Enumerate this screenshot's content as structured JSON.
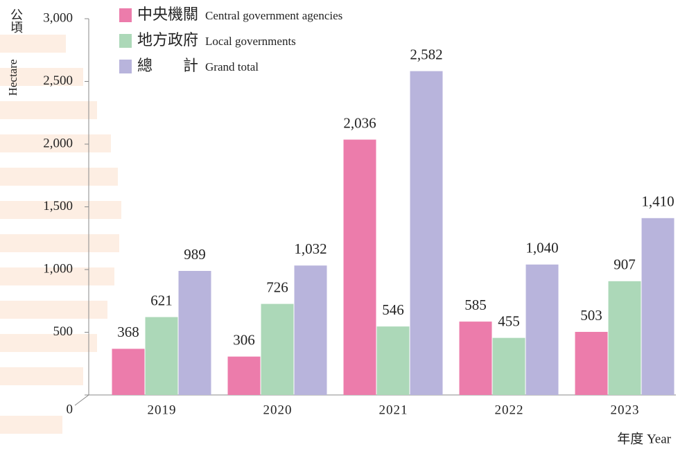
{
  "chart_data": {
    "type": "bar",
    "y_axis_label_zh": "公頃",
    "y_axis_label": "Hectare",
    "x_axis_label": "年度 Year",
    "categories": [
      "2019",
      "2020",
      "2021",
      "2022",
      "2023"
    ],
    "series": [
      {
        "name": "中央機關",
        "name_en": "Central government agencies",
        "color": "#ec7cab",
        "values": [
          368,
          306,
          2036,
          585,
          503
        ],
        "value_labels": [
          "368",
          "306",
          "2,036",
          "585",
          "503"
        ]
      },
      {
        "name": "地方政府",
        "name_en": "Local governments",
        "color": "#acd8b8",
        "values": [
          621,
          726,
          546,
          455,
          907
        ],
        "value_labels": [
          "621",
          "726",
          "546",
          "455",
          "907"
        ]
      },
      {
        "name": "總　　計",
        "name_en": "Grand total",
        "color": "#b8b4dc",
        "values": [
          989,
          1032,
          2582,
          1040,
          1410
        ],
        "value_labels": [
          "989",
          "1,032",
          "2,582",
          "1,040",
          "1,410"
        ]
      }
    ],
    "ylim": [
      0,
      3000
    ],
    "yticks": [
      0,
      500,
      {
        "value": 1000,
        "label": "1,000"
      },
      {
        "value": 1500,
        "label": "1,500"
      },
      {
        "value": 2000,
        "label": "2,000"
      },
      {
        "value": 2500,
        "label": "2,500"
      },
      {
        "value": 3000,
        "label": "3,000"
      }
    ],
    "grid": false
  }
}
